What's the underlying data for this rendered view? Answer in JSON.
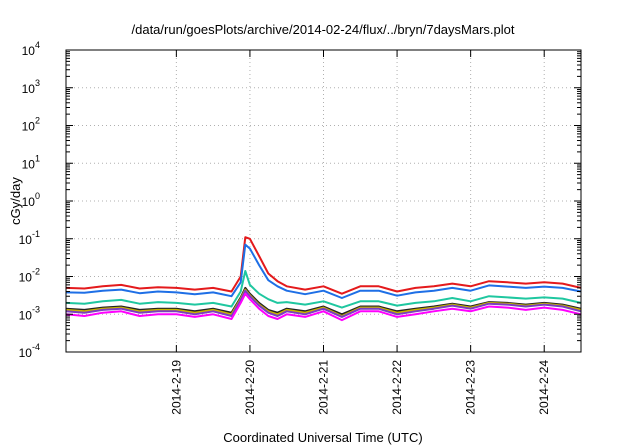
{
  "chart_data": {
    "type": "line",
    "title": "/data/run/goesPlots/archive/2014-02-24/flux/../bryn/7daysMars.plot",
    "xlabel": "Coordinated Universal Time (UTC)",
    "ylabel": "cGy/day",
    "yscale": "log",
    "ylim": [
      0.0001,
      10000
    ],
    "xlim": [
      "2014-02-18T00:00",
      "2014-02-25T00:00"
    ],
    "grid": true,
    "legend": "none",
    "y_ticks": [
      {
        "base": "10",
        "exp": "-4"
      },
      {
        "base": "10",
        "exp": "-3"
      },
      {
        "base": "10",
        "exp": "-2"
      },
      {
        "base": "10",
        "exp": "-1"
      },
      {
        "base": "10",
        "exp": "0"
      },
      {
        "base": "10",
        "exp": "1"
      },
      {
        "base": "10",
        "exp": "2"
      },
      {
        "base": "10",
        "exp": "3"
      },
      {
        "base": "10",
        "exp": "4"
      }
    ],
    "x_ticks": [
      "2014-2-19",
      "2014-2-20",
      "2014-2-21",
      "2014-2-22",
      "2014-2-23",
      "2014-2-24"
    ],
    "x": [
      "2014-02-18T00:00",
      "2014-02-18T06:00",
      "2014-02-18T12:00",
      "2014-02-18T18:00",
      "2014-02-19T00:00",
      "2014-02-19T06:00",
      "2014-02-19T12:00",
      "2014-02-19T18:00",
      "2014-02-20T00:00",
      "2014-02-20T06:00",
      "2014-02-20T09:00",
      "2014-02-20T10:30",
      "2014-02-20T12:00",
      "2014-02-20T15:00",
      "2014-02-20T18:00",
      "2014-02-20T21:00",
      "2014-02-21T00:00",
      "2014-02-21T06:00",
      "2014-02-21T12:00",
      "2014-02-21T18:00",
      "2014-02-22T00:00",
      "2014-02-22T06:00",
      "2014-02-22T12:00",
      "2014-02-22T18:00",
      "2014-02-23T00:00",
      "2014-02-23T06:00",
      "2014-02-23T12:00",
      "2014-02-23T18:00",
      "2014-02-24T00:00",
      "2014-02-24T06:00",
      "2014-02-24T12:00",
      "2014-02-24T18:00",
      "2014-02-25T00:00"
    ],
    "series": [
      {
        "color": "#e41a1c",
        "values": [
          0.005,
          0.0048,
          0.0055,
          0.006,
          0.0048,
          0.0052,
          0.005,
          0.0045,
          0.005,
          0.004,
          0.01,
          0.11,
          0.1,
          0.035,
          0.012,
          0.0075,
          0.0055,
          0.0045,
          0.0055,
          0.0035,
          0.0055,
          0.0055,
          0.004,
          0.005,
          0.0055,
          0.0065,
          0.0055,
          0.0075,
          0.007,
          0.0065,
          0.007,
          0.0065,
          0.005
        ]
      },
      {
        "color": "#1e6fe6",
        "values": [
          0.0038,
          0.0037,
          0.0042,
          0.0045,
          0.0036,
          0.004,
          0.0038,
          0.0034,
          0.0038,
          0.003,
          0.007,
          0.07,
          0.055,
          0.02,
          0.008,
          0.0055,
          0.0042,
          0.0034,
          0.0042,
          0.0027,
          0.0042,
          0.0042,
          0.0031,
          0.0038,
          0.0042,
          0.005,
          0.0042,
          0.0058,
          0.0054,
          0.005,
          0.0054,
          0.005,
          0.004
        ]
      },
      {
        "color": "#1fc7a0",
        "values": [
          0.002,
          0.0019,
          0.0022,
          0.0024,
          0.0019,
          0.0021,
          0.002,
          0.0018,
          0.002,
          0.0016,
          0.004,
          0.014,
          0.006,
          0.0035,
          0.0025,
          0.002,
          0.0021,
          0.0018,
          0.0022,
          0.0015,
          0.0022,
          0.0022,
          0.0017,
          0.002,
          0.0022,
          0.0027,
          0.0022,
          0.003,
          0.0028,
          0.0026,
          0.0028,
          0.0026,
          0.002
        ]
      },
      {
        "color": "#222222",
        "values": [
          0.0014,
          0.0013,
          0.0015,
          0.0016,
          0.0013,
          0.0014,
          0.0014,
          0.0012,
          0.0014,
          0.0011,
          0.0028,
          0.005,
          0.0035,
          0.002,
          0.0013,
          0.0011,
          0.0014,
          0.0012,
          0.0016,
          0.001,
          0.0016,
          0.0016,
          0.0012,
          0.0014,
          0.0016,
          0.0019,
          0.0016,
          0.0021,
          0.002,
          0.0018,
          0.002,
          0.0018,
          0.0014
        ]
      },
      {
        "color": "#c8b400",
        "values": [
          0.0013,
          0.0012,
          0.0014,
          0.0015,
          0.0012,
          0.0013,
          0.0013,
          0.0011,
          0.0013,
          0.001,
          0.0026,
          0.0045,
          0.0032,
          0.0018,
          0.0012,
          0.001,
          0.0013,
          0.0011,
          0.0015,
          0.0009,
          0.0015,
          0.0015,
          0.0011,
          0.0013,
          0.0015,
          0.0018,
          0.0015,
          0.002,
          0.0019,
          0.0017,
          0.0019,
          0.0017,
          0.0013
        ]
      },
      {
        "color": "#7a3fc0",
        "values": [
          0.0012,
          0.0011,
          0.0013,
          0.0014,
          0.0011,
          0.0012,
          0.0012,
          0.001,
          0.0012,
          0.0009,
          0.0024,
          0.0042,
          0.003,
          0.0017,
          0.0011,
          0.0009,
          0.0012,
          0.001,
          0.0014,
          0.00085,
          0.0014,
          0.0014,
          0.001,
          0.0012,
          0.0014,
          0.0017,
          0.0014,
          0.0019,
          0.0018,
          0.0016,
          0.0018,
          0.0016,
          0.0012
        ]
      },
      {
        "color": "#ff00ff",
        "values": [
          0.001,
          0.0009,
          0.0011,
          0.0012,
          0.0009,
          0.001,
          0.001,
          0.00085,
          0.001,
          0.00075,
          0.002,
          0.0035,
          0.0025,
          0.0014,
          0.0009,
          0.00075,
          0.001,
          0.00085,
          0.0012,
          0.0007,
          0.0012,
          0.0012,
          0.00085,
          0.001,
          0.0012,
          0.0014,
          0.0012,
          0.0016,
          0.0015,
          0.0013,
          0.0015,
          0.0013,
          0.001
        ]
      }
    ]
  }
}
